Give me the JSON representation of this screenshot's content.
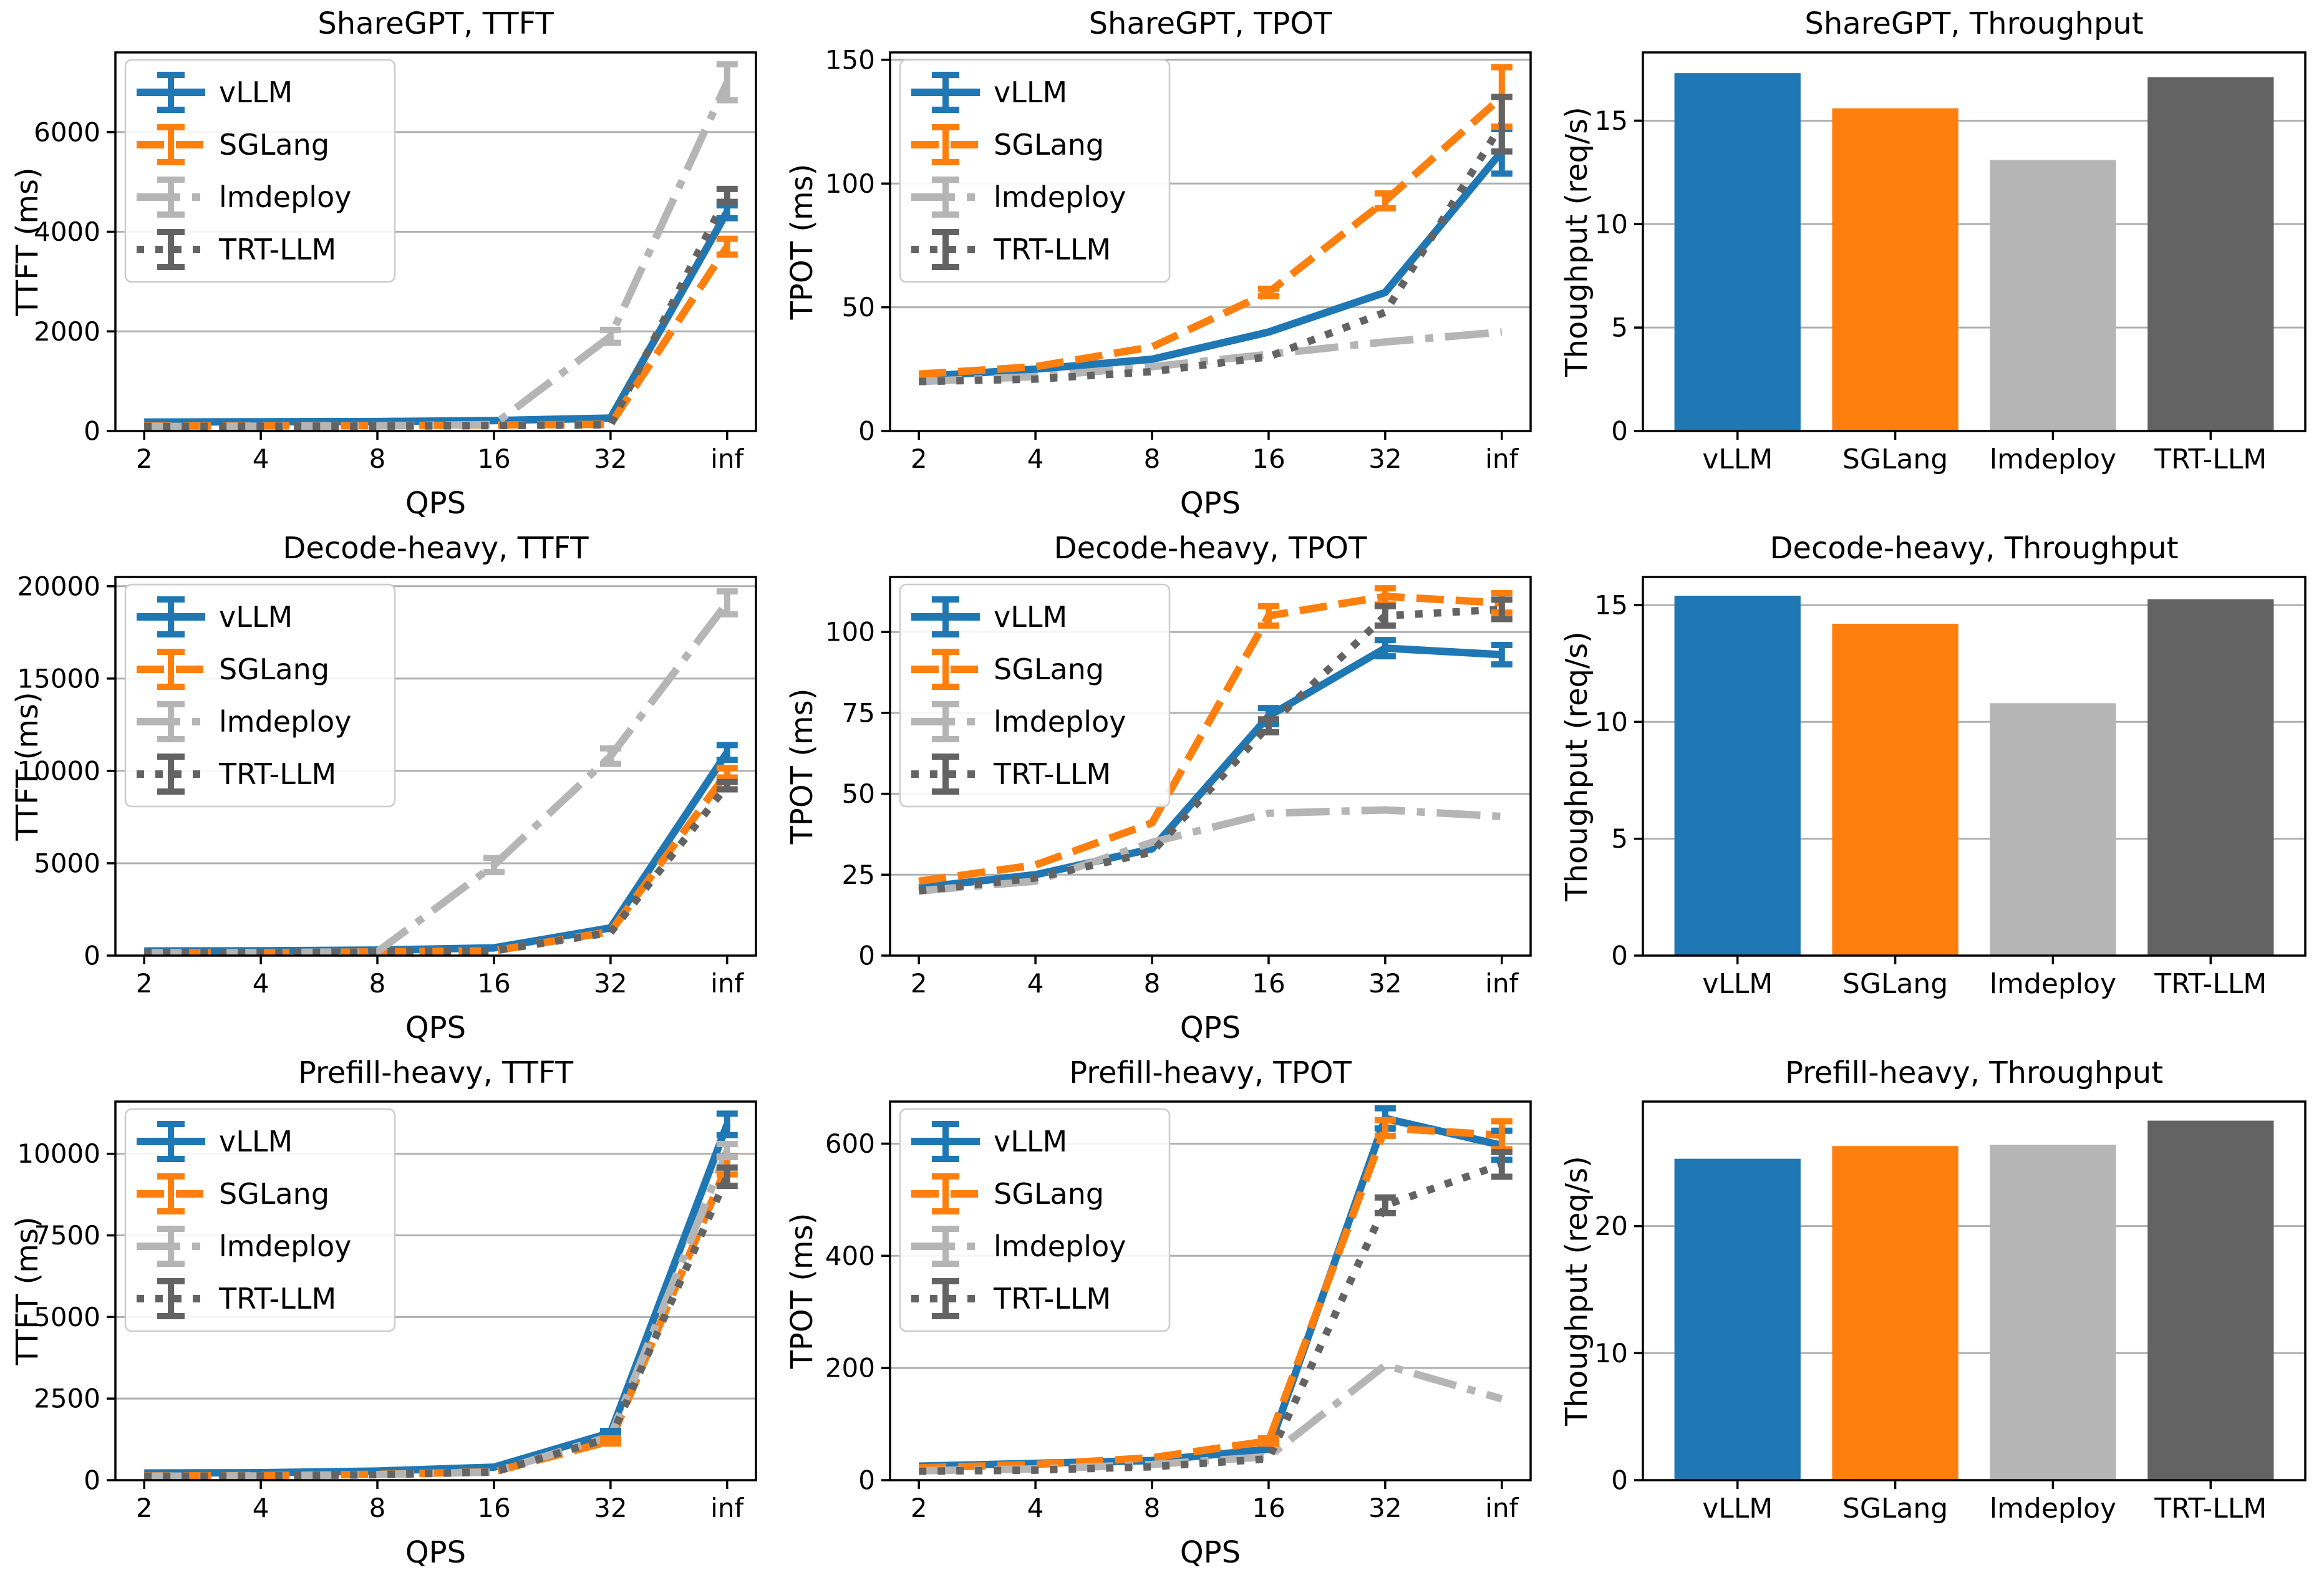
{
  "page": {
    "background": "#ffffff"
  },
  "palette": {
    "vllm": "#1f77b4",
    "sglang": "#ff7f0e",
    "lmdeploy": "#b5b5b5",
    "trtllm": "#636363",
    "grid": "#b0b0b0",
    "spine": "#000000"
  },
  "legend_labels": [
    "vLLM",
    "SGLang",
    "lmdeploy",
    "TRT-LLM"
  ],
  "chart_data": [
    {
      "type": "line",
      "title": "ShareGPT, TTFT",
      "xlabel": "QPS",
      "ylabel": "TTFT (ms)",
      "x_ticklabels": [
        "2",
        "4",
        "8",
        "16",
        "32",
        "inf"
      ],
      "yticks": [
        0,
        2000,
        4000,
        6000
      ],
      "ylim": [
        0,
        7600
      ],
      "grid": true,
      "legend_position": "upper-left",
      "series": [
        {
          "name": "vLLM",
          "color": "#1f77b4",
          "dash": "solid",
          "values": [
            180,
            185,
            190,
            210,
            260,
            4400
          ],
          "err": [
            0,
            0,
            0,
            0,
            0,
            130
          ]
        },
        {
          "name": "SGLang",
          "color": "#ff7f0e",
          "dash": "dashed",
          "values": [
            100,
            105,
            110,
            120,
            135,
            3700
          ],
          "err": [
            0,
            0,
            0,
            0,
            0,
            160
          ]
        },
        {
          "name": "lmdeploy",
          "color": "#b5b5b5",
          "dash": "dashdot",
          "values": [
            90,
            95,
            105,
            130,
            1900,
            7000
          ],
          "err": [
            0,
            0,
            0,
            0,
            130,
            360
          ]
        },
        {
          "name": "TRT-LLM",
          "color": "#636363",
          "dash": "dotted",
          "values": [
            90,
            95,
            100,
            110,
            125,
            4730
          ],
          "err": [
            0,
            0,
            0,
            0,
            0,
            130
          ]
        }
      ]
    },
    {
      "type": "line",
      "title": "ShareGPT, TPOT",
      "xlabel": "QPS",
      "ylabel": "TPOT (ms)",
      "x_ticklabels": [
        "2",
        "4",
        "8",
        "16",
        "32",
        "inf"
      ],
      "yticks": [
        0,
        50,
        100,
        150
      ],
      "ylim": [
        0,
        153
      ],
      "grid": true,
      "legend_position": "upper-left",
      "series": [
        {
          "name": "vLLM",
          "color": "#1f77b4",
          "dash": "solid",
          "values": [
            22,
            25,
            29,
            40,
            56,
            113
          ],
          "err": [
            0,
            0,
            0,
            0,
            0,
            9
          ]
        },
        {
          "name": "SGLang",
          "color": "#ff7f0e",
          "dash": "dashed",
          "values": [
            23,
            26,
            34,
            56,
            93,
            135
          ],
          "err": [
            0,
            0,
            0,
            1.5,
            3,
            12
          ]
        },
        {
          "name": "lmdeploy",
          "color": "#b5b5b5",
          "dash": "dashdot",
          "values": [
            20,
            22,
            26,
            31,
            36,
            40
          ],
          "err": [
            0,
            0,
            0,
            0,
            0,
            0
          ]
        },
        {
          "name": "TRT-LLM",
          "color": "#636363",
          "dash": "dotted",
          "values": [
            20,
            21,
            24,
            30,
            48,
            124
          ],
          "err": [
            0,
            0,
            0,
            0,
            0,
            11
          ]
        }
      ]
    },
    {
      "type": "bar",
      "title": "ShareGPT, Throughput",
      "ylabel": "Thoughput (req/s)",
      "categories": [
        "vLLM",
        "SGLang",
        "lmdeploy",
        "TRT-LLM"
      ],
      "values": [
        17.3,
        15.6,
        13.1,
        17.1
      ],
      "colors": [
        "#1f77b4",
        "#ff7f0e",
        "#b5b5b5",
        "#636363"
      ],
      "yticks": [
        0,
        5,
        10,
        15
      ],
      "ylim": [
        0,
        18.3
      ],
      "grid": true
    },
    {
      "type": "line",
      "title": "Decode-heavy, TTFT",
      "xlabel": "QPS",
      "ylabel": "TTFT (ms)",
      "x_ticklabels": [
        "2",
        "4",
        "8",
        "16",
        "32",
        "inf"
      ],
      "yticks": [
        0,
        5000,
        10000,
        15000,
        20000
      ],
      "ylim": [
        0,
        20500
      ],
      "grid": true,
      "legend_position": "upper-left",
      "series": [
        {
          "name": "vLLM",
          "color": "#1f77b4",
          "dash": "solid",
          "values": [
            250,
            260,
            300,
            420,
            1500,
            11000
          ],
          "err": [
            0,
            0,
            0,
            0,
            0,
            400
          ]
        },
        {
          "name": "SGLang",
          "color": "#ff7f0e",
          "dash": "dashed",
          "values": [
            150,
            160,
            200,
            260,
            1300,
            9900
          ],
          "err": [
            0,
            0,
            0,
            0,
            0,
            260
          ]
        },
        {
          "name": "lmdeploy",
          "color": "#b5b5b5",
          "dash": "dashdot",
          "values": [
            150,
            160,
            210,
            4900,
            10800,
            19100
          ],
          "err": [
            0,
            0,
            0,
            380,
            420,
            620
          ]
        },
        {
          "name": "TRT-LLM",
          "color": "#636363",
          "dash": "dotted",
          "values": [
            150,
            160,
            200,
            260,
            1250,
            9200
          ],
          "err": [
            0,
            0,
            0,
            0,
            0,
            200
          ]
        }
      ]
    },
    {
      "type": "line",
      "title": "Decode-heavy, TPOT",
      "xlabel": "QPS",
      "ylabel": "TPOT (ms)",
      "x_ticklabels": [
        "2",
        "4",
        "8",
        "16",
        "32",
        "inf"
      ],
      "yticks": [
        0,
        25,
        50,
        75,
        100
      ],
      "ylim": [
        0,
        117
      ],
      "grid": true,
      "legend_position": "upper-left",
      "series": [
        {
          "name": "vLLM",
          "color": "#1f77b4",
          "dash": "solid",
          "values": [
            21,
            25,
            33,
            74,
            95,
            93
          ],
          "err": [
            0,
            0,
            0,
            2.5,
            2.5,
            3
          ]
        },
        {
          "name": "SGLang",
          "color": "#ff7f0e",
          "dash": "dashed",
          "values": [
            23,
            28,
            41,
            105,
            111,
            109
          ],
          "err": [
            0,
            0,
            0,
            3,
            2.5,
            3
          ]
        },
        {
          "name": "lmdeploy",
          "color": "#b5b5b5",
          "dash": "dashdot",
          "values": [
            20,
            23,
            35,
            44,
            45,
            43
          ],
          "err": [
            0,
            0,
            0,
            0,
            0,
            0
          ]
        },
        {
          "name": "TRT-LLM",
          "color": "#636363",
          "dash": "dotted",
          "values": [
            20,
            24,
            32,
            71,
            105,
            107
          ],
          "err": [
            0,
            0,
            0,
            2,
            3,
            3
          ]
        }
      ]
    },
    {
      "type": "bar",
      "title": "Decode-heavy, Throughput",
      "ylabel": "Thoughput (req/s)",
      "categories": [
        "vLLM",
        "SGLang",
        "lmdeploy",
        "TRT-LLM"
      ],
      "values": [
        15.4,
        14.2,
        10.8,
        15.25
      ],
      "colors": [
        "#1f77b4",
        "#ff7f0e",
        "#b5b5b5",
        "#636363"
      ],
      "yticks": [
        0,
        5,
        10,
        15
      ],
      "ylim": [
        0,
        16.2
      ],
      "grid": true
    },
    {
      "type": "line",
      "title": "Prefill-heavy, TTFT",
      "xlabel": "QPS",
      "ylabel": "TTFT (ms)",
      "x_ticklabels": [
        "2",
        "4",
        "8",
        "16",
        "32",
        "inf"
      ],
      "yticks": [
        0,
        2500,
        5000,
        7500,
        10000
      ],
      "ylim": [
        0,
        11600
      ],
      "grid": true,
      "legend_position": "upper-left",
      "series": [
        {
          "name": "vLLM",
          "color": "#1f77b4",
          "dash": "solid",
          "values": [
            220,
            230,
            280,
            400,
            1450,
            10900
          ],
          "err": [
            0,
            0,
            0,
            0,
            60,
            330
          ]
        },
        {
          "name": "SGLang",
          "color": "#ff7f0e",
          "dash": "dashed",
          "values": [
            130,
            140,
            180,
            260,
            1200,
            9650
          ],
          "err": [
            0,
            0,
            0,
            0,
            80,
            280
          ]
        },
        {
          "name": "lmdeploy",
          "color": "#b5b5b5",
          "dash": "dashdot",
          "values": [
            120,
            130,
            170,
            250,
            1350,
            10100
          ],
          "err": [
            0,
            0,
            0,
            0,
            0,
            200
          ]
        },
        {
          "name": "TRT-LLM",
          "color": "#636363",
          "dash": "dotted",
          "values": [
            120,
            130,
            170,
            250,
            1300,
            9300
          ],
          "err": [
            0,
            0,
            0,
            0,
            0,
            280
          ]
        }
      ]
    },
    {
      "type": "line",
      "title": "Prefill-heavy, TPOT",
      "xlabel": "QPS",
      "ylabel": "TPOT (ms)",
      "x_ticklabels": [
        "2",
        "4",
        "8",
        "16",
        "32",
        "inf"
      ],
      "yticks": [
        0,
        200,
        400,
        600
      ],
      "ylim": [
        0,
        675
      ],
      "grid": true,
      "legend_position": "upper-left",
      "series": [
        {
          "name": "vLLM",
          "color": "#1f77b4",
          "dash": "solid",
          "values": [
            25,
            30,
            35,
            55,
            645,
            597
          ],
          "err": [
            0,
            0,
            0,
            0,
            18,
            26
          ]
        },
        {
          "name": "SGLang",
          "color": "#ff7f0e",
          "dash": "dashed",
          "values": [
            22,
            28,
            40,
            70,
            628,
            615
          ],
          "err": [
            0,
            0,
            0,
            5,
            14,
            25
          ]
        },
        {
          "name": "lmdeploy",
          "color": "#b5b5b5",
          "dash": "dashdot",
          "values": [
            17,
            20,
            28,
            42,
            205,
            145
          ],
          "err": [
            0,
            0,
            0,
            0,
            0,
            0
          ]
        },
        {
          "name": "TRT-LLM",
          "color": "#636363",
          "dash": "dotted",
          "values": [
            16,
            18,
            24,
            38,
            490,
            563
          ],
          "err": [
            0,
            0,
            0,
            0,
            14,
            22
          ]
        }
      ]
    },
    {
      "type": "bar",
      "title": "Prefill-heavy, Throughput",
      "ylabel": "Thoughput (req/s)",
      "categories": [
        "vLLM",
        "SGLang",
        "lmdeploy",
        "TRT-LLM"
      ],
      "values": [
        25.3,
        26.3,
        26.4,
        28.3
      ],
      "colors": [
        "#1f77b4",
        "#ff7f0e",
        "#b5b5b5",
        "#636363"
      ],
      "yticks": [
        0,
        10,
        20
      ],
      "ylim": [
        0,
        29.8
      ],
      "grid": true
    }
  ]
}
